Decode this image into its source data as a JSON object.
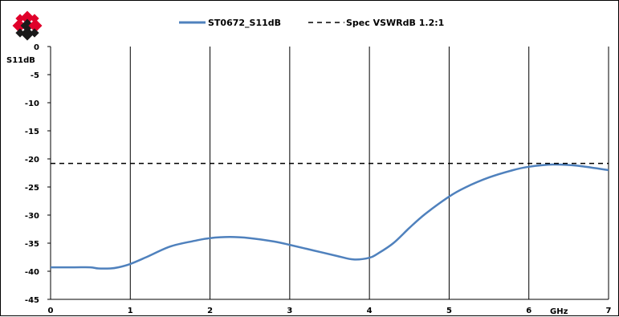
{
  "chart_data": {
    "type": "line",
    "title": "",
    "xlabel": "GHz",
    "ylabel": "S11dB",
    "xlim": [
      0,
      7
    ],
    "ylim": [
      -45,
      0
    ],
    "x_ticks": [
      0,
      1,
      2,
      3,
      4,
      5,
      6,
      7
    ],
    "y_ticks": [
      0,
      -5,
      -10,
      -15,
      -20,
      -25,
      -30,
      -35,
      -40,
      -45
    ],
    "grid": {
      "vertical": true,
      "horizontal": false
    },
    "legend_position": "top",
    "series": [
      {
        "name": "ST0672_S11dB",
        "style": "solid",
        "color": "#4f81bd",
        "x": [
          0.0,
          0.3,
          0.5,
          0.6,
          0.75,
          0.85,
          1.0,
          1.2,
          1.5,
          1.8,
          2.0,
          2.25,
          2.5,
          2.8,
          3.0,
          3.3,
          3.6,
          3.8,
          4.0,
          4.1,
          4.3,
          4.5,
          4.7,
          5.0,
          5.2,
          5.5,
          5.8,
          6.0,
          6.3,
          6.6,
          7.0
        ],
        "y": [
          -39.3,
          -39.3,
          -39.3,
          -39.5,
          -39.5,
          -39.3,
          -38.7,
          -37.5,
          -35.6,
          -34.6,
          -34.1,
          -33.9,
          -34.1,
          -34.7,
          -35.3,
          -36.3,
          -37.3,
          -37.9,
          -37.6,
          -36.9,
          -35.0,
          -32.3,
          -29.8,
          -26.7,
          -25.1,
          -23.3,
          -22.0,
          -21.4,
          -21.0,
          -21.2,
          -22.0
        ]
      },
      {
        "name": "Spec VSWRdB 1.2:1",
        "style": "dashed",
        "color": "#000000",
        "x": [
          0,
          7
        ],
        "y": [
          -20.8,
          -20.8
        ]
      }
    ]
  }
}
